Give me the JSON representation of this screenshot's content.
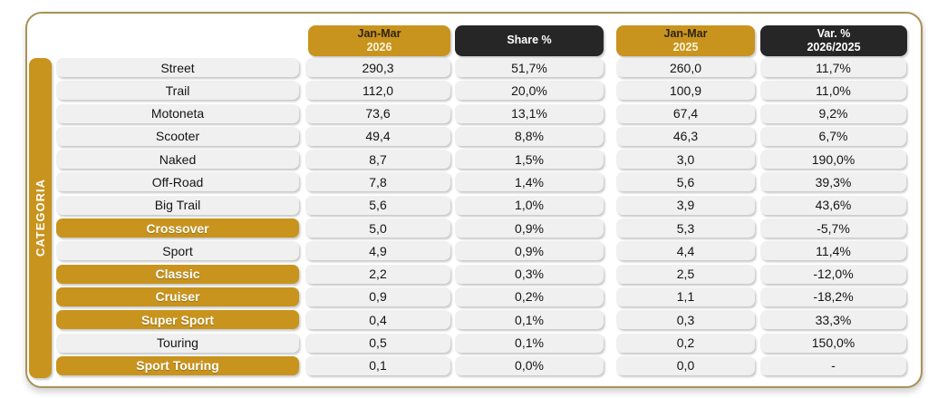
{
  "colors": {
    "gold": "#C8941E",
    "dark": "#262626",
    "cell_bg": "#F0F0F0",
    "frame_border": "#A89255"
  },
  "side_label": "CATEGORIA",
  "header": {
    "columns": [
      {
        "line1": "Jan-Mar",
        "line2": "2026",
        "variant": "gold"
      },
      {
        "line1": "Share %",
        "line2": "",
        "variant": "dark"
      },
      {
        "line1": "Jan-Mar",
        "line2": "2025",
        "variant": "gold"
      },
      {
        "line1": "Var. %",
        "line2": "2026/2025",
        "variant": "dark"
      }
    ]
  },
  "table": {
    "rows": [
      {
        "category": "Street",
        "highlight": false,
        "values": [
          "290,3",
          "51,7%",
          "260,0",
          "11,7%"
        ]
      },
      {
        "category": "Trail",
        "highlight": false,
        "values": [
          "112,0",
          "20,0%",
          "100,9",
          "11,0%"
        ]
      },
      {
        "category": "Motoneta",
        "highlight": false,
        "values": [
          "73,6",
          "13,1%",
          "67,4",
          "9,2%"
        ]
      },
      {
        "category": "Scooter",
        "highlight": false,
        "values": [
          "49,4",
          "8,8%",
          "46,3",
          "6,7%"
        ]
      },
      {
        "category": "Naked",
        "highlight": false,
        "values": [
          "8,7",
          "1,5%",
          "3,0",
          "190,0%"
        ]
      },
      {
        "category": "Off-Road",
        "highlight": false,
        "values": [
          "7,8",
          "1,4%",
          "5,6",
          "39,3%"
        ]
      },
      {
        "category": "Big Trail",
        "highlight": false,
        "values": [
          "5,6",
          "1,0%",
          "3,9",
          "43,6%"
        ]
      },
      {
        "category": "Crossover",
        "highlight": true,
        "values": [
          "5,0",
          "0,9%",
          "5,3",
          "-5,7%"
        ]
      },
      {
        "category": "Sport",
        "highlight": false,
        "values": [
          "4,9",
          "0,9%",
          "4,4",
          "11,4%"
        ]
      },
      {
        "category": "Classic",
        "highlight": true,
        "values": [
          "2,2",
          "0,3%",
          "2,5",
          "-12,0%"
        ]
      },
      {
        "category": "Cruiser",
        "highlight": true,
        "values": [
          "0,9",
          "0,2%",
          "1,1",
          "-18,2%"
        ]
      },
      {
        "category": "Super Sport",
        "highlight": true,
        "values": [
          "0,4",
          "0,1%",
          "0,3",
          "33,3%"
        ]
      },
      {
        "category": "Touring",
        "highlight": false,
        "values": [
          "0,5",
          "0,1%",
          "0,2",
          "150,0%"
        ]
      },
      {
        "category": "Sport Touring",
        "highlight": true,
        "values": [
          "0,1",
          "0,0%",
          "0,0",
          "-"
        ]
      }
    ]
  },
  "chart_data": {
    "type": "table",
    "title": "",
    "row_header": "CATEGORIA",
    "columns": [
      "Jan-Mar 2026",
      "Share %",
      "Jan-Mar 2025",
      "Var. % 2026/2025"
    ],
    "categories": [
      "Street",
      "Trail",
      "Motoneta",
      "Scooter",
      "Naked",
      "Off-Road",
      "Big Trail",
      "Crossover",
      "Sport",
      "Classic",
      "Cruiser",
      "Super Sport",
      "Touring",
      "Sport Touring"
    ],
    "series": [
      {
        "name": "Jan-Mar 2026",
        "values": [
          290.3,
          112.0,
          73.6,
          49.4,
          8.7,
          7.8,
          5.6,
          5.0,
          4.9,
          2.2,
          0.9,
          0.4,
          0.5,
          0.1
        ]
      },
      {
        "name": "Share %",
        "values": [
          51.7,
          20.0,
          13.1,
          8.8,
          1.5,
          1.4,
          1.0,
          0.9,
          0.9,
          0.3,
          0.2,
          0.1,
          0.1,
          0.0
        ]
      },
      {
        "name": "Jan-Mar 2025",
        "values": [
          260.0,
          100.9,
          67.4,
          46.3,
          3.0,
          5.6,
          3.9,
          5.3,
          4.4,
          2.5,
          1.1,
          0.3,
          0.2,
          0.0
        ]
      },
      {
        "name": "Var. % 2026/2025",
        "values": [
          11.7,
          11.0,
          9.2,
          6.7,
          190.0,
          39.3,
          43.6,
          -5.7,
          11.4,
          -12.0,
          -18.2,
          33.3,
          150.0,
          null
        ]
      }
    ],
    "highlighted_categories": [
      "Crossover",
      "Classic",
      "Cruiser",
      "Super Sport",
      "Sport Touring"
    ],
    "number_format": "decimal-comma"
  }
}
